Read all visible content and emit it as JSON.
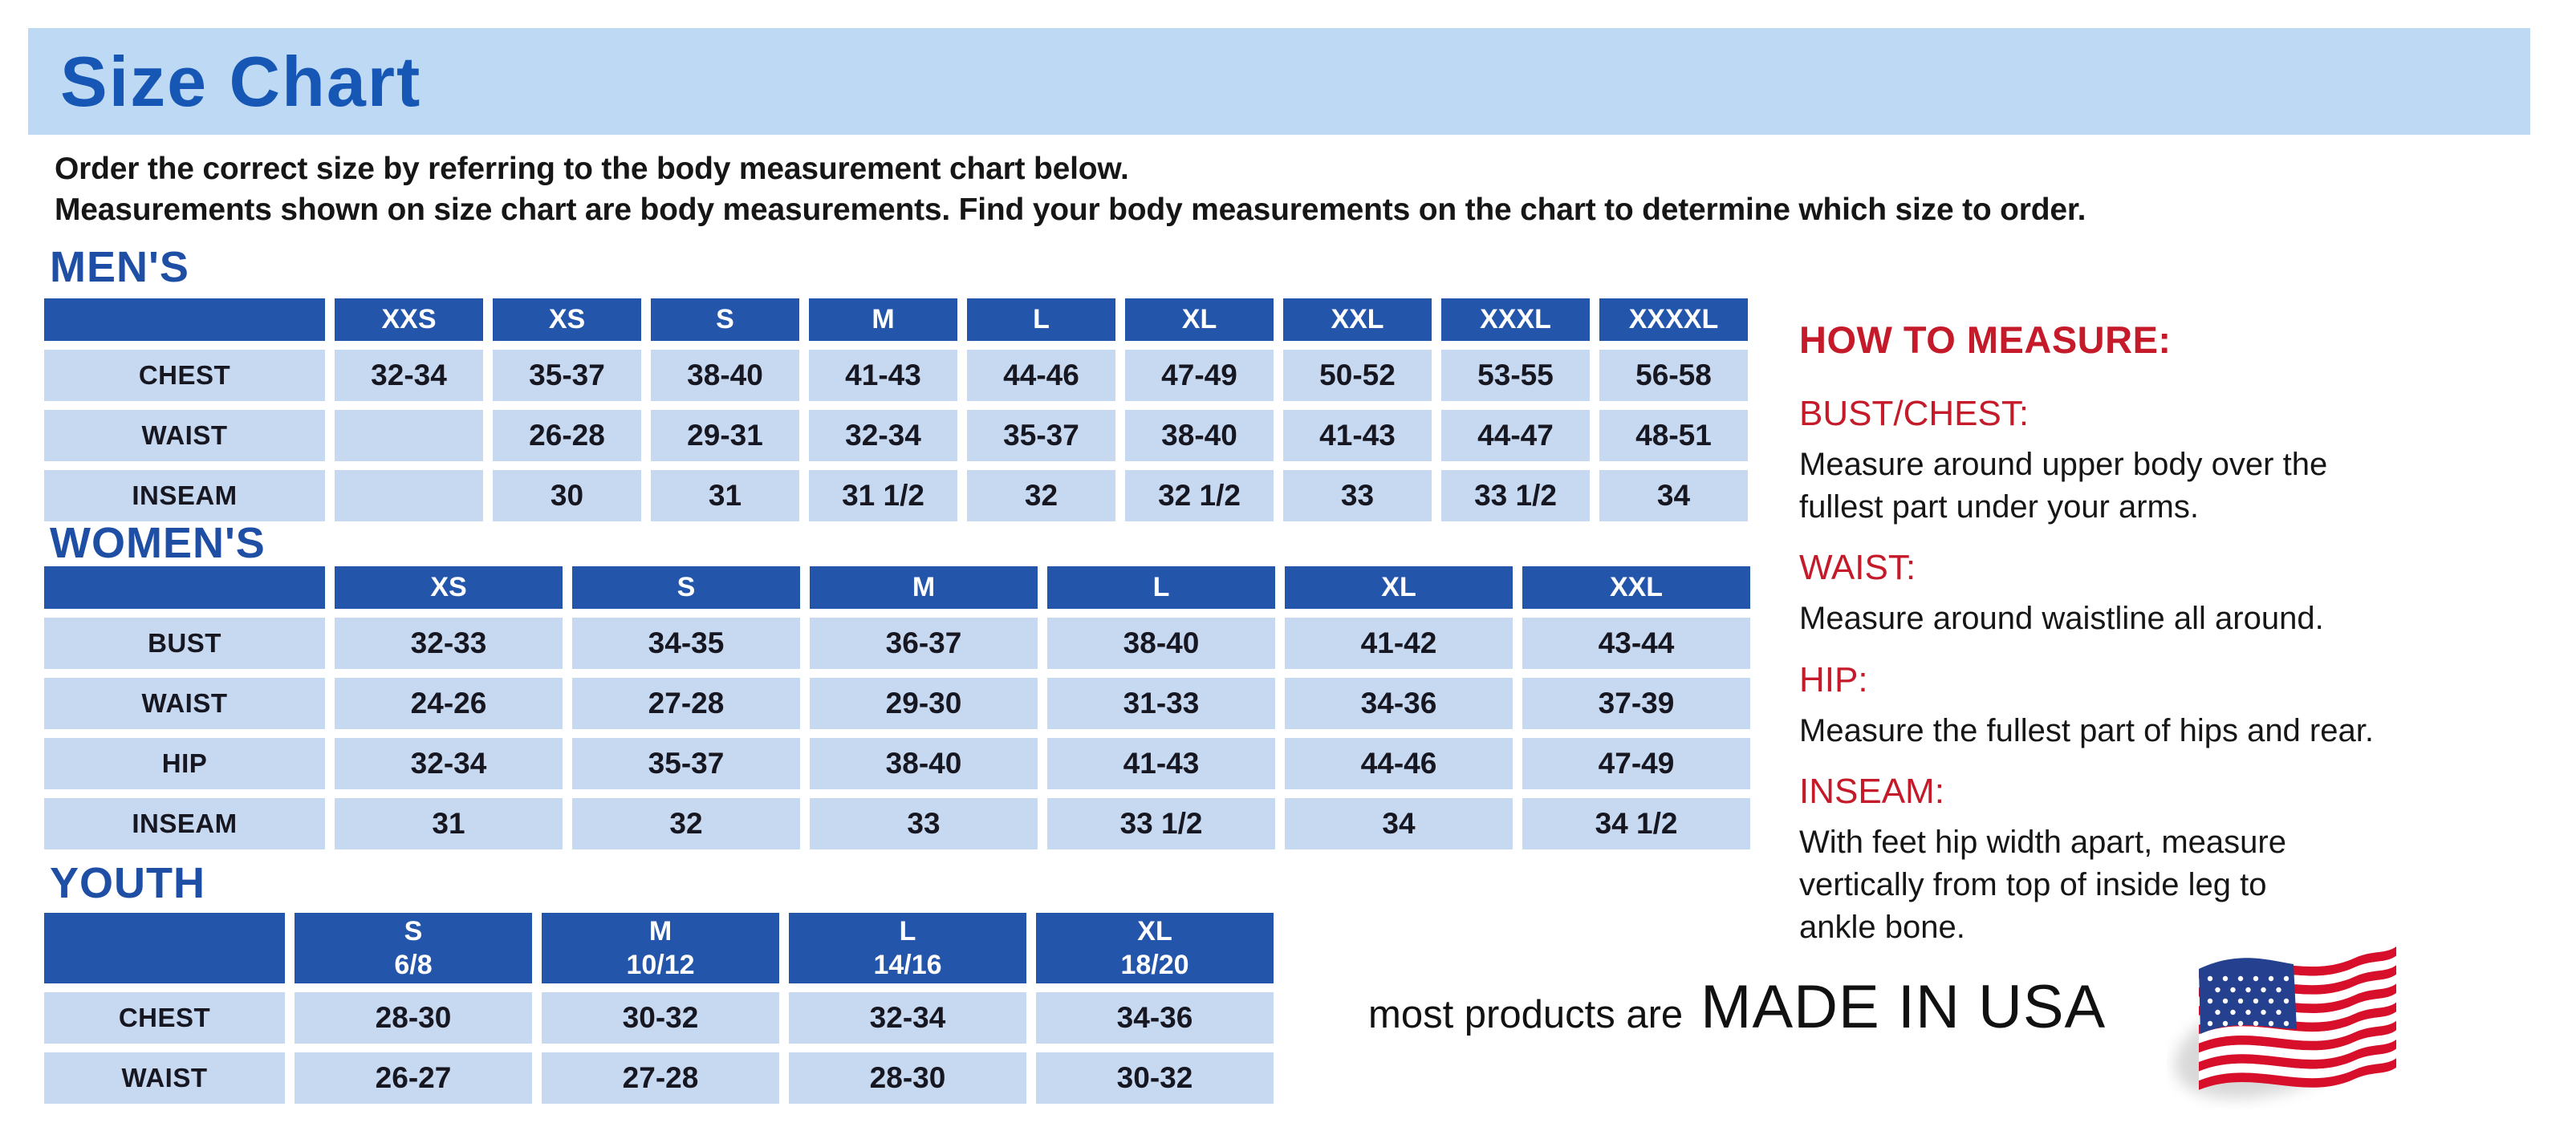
{
  "page": {
    "title": "Size Chart",
    "intro": "Order the correct size by referring to the body measurement chart below.\nMeasurements shown on size chart are body measurements.  Find your body measurements on the chart to determine which size to order."
  },
  "colors": {
    "banner_bg": "#bed9f4",
    "title_blue": "#1657b6",
    "section_blue": "#1e4fa4",
    "th_bg": "#2355ab",
    "cell_bg": "#c7d9f0",
    "red": "#c41a29",
    "flag_red": "#d80f2a",
    "flag_blue": "#24408e"
  },
  "tables": [
    {
      "id": "mens",
      "heading": "MEN'S",
      "columns": [
        "XXS",
        "XS",
        "S",
        "M",
        "L",
        "XL",
        "XXL",
        "XXXL",
        "XXXXL"
      ],
      "rows": [
        {
          "label": "CHEST",
          "values": [
            "32-34",
            "35-37",
            "38-40",
            "41-43",
            "44-46",
            "47-49",
            "50-52",
            "53-55",
            "56-58"
          ]
        },
        {
          "label": "WAIST",
          "values": [
            "",
            "26-28",
            "29-31",
            "32-34",
            "35-37",
            "38-40",
            "41-43",
            "44-47",
            "48-51"
          ]
        },
        {
          "label": "INSEAM",
          "values": [
            "",
            "30",
            "31",
            "31 1/2",
            "32",
            "32 1/2",
            "33",
            "33 1/2",
            "34"
          ]
        }
      ]
    },
    {
      "id": "womens",
      "heading": "WOMEN'S",
      "columns": [
        "XS",
        "S",
        "M",
        "L",
        "XL",
        "XXL"
      ],
      "rows": [
        {
          "label": "BUST",
          "values": [
            "32-33",
            "34-35",
            "36-37",
            "38-40",
            "41-42",
            "43-44"
          ]
        },
        {
          "label": "WAIST",
          "values": [
            "24-26",
            "27-28",
            "29-30",
            "31-33",
            "34-36",
            "37-39"
          ]
        },
        {
          "label": "HIP",
          "values": [
            "32-34",
            "35-37",
            "38-40",
            "41-43",
            "44-46",
            "47-49"
          ]
        },
        {
          "label": "INSEAM",
          "values": [
            "31",
            "32",
            "33",
            "33 1/2",
            "34",
            "34 1/2"
          ]
        }
      ]
    },
    {
      "id": "youth",
      "heading": "YOUTH",
      "columns": [
        "S\n6/8",
        "M\n10/12",
        "L\n14/16",
        "XL\n18/20"
      ],
      "rows": [
        {
          "label": "CHEST",
          "values": [
            "28-30",
            "30-32",
            "32-34",
            "34-36"
          ]
        },
        {
          "label": "WAIST",
          "values": [
            "26-27",
            "27-28",
            "28-30",
            "30-32"
          ]
        }
      ]
    }
  ],
  "how_to_measure": {
    "title": "HOW TO MEASURE:",
    "items": [
      {
        "label": "BUST/CHEST:",
        "text": "Measure around upper body over the\nfullest part under your arms."
      },
      {
        "label": "WAIST:",
        "text": "Measure around waistline all around."
      },
      {
        "label": "HIP:",
        "text": "Measure the fullest part of hips and rear."
      },
      {
        "label": "INSEAM:",
        "text": "With feet hip width apart, measure\nvertically from top of inside leg to\nankle bone."
      }
    ]
  },
  "footer": {
    "prefix": "most products are",
    "made_in": "MADE IN USA",
    "flag_icon": "usa-flag-icon"
  }
}
